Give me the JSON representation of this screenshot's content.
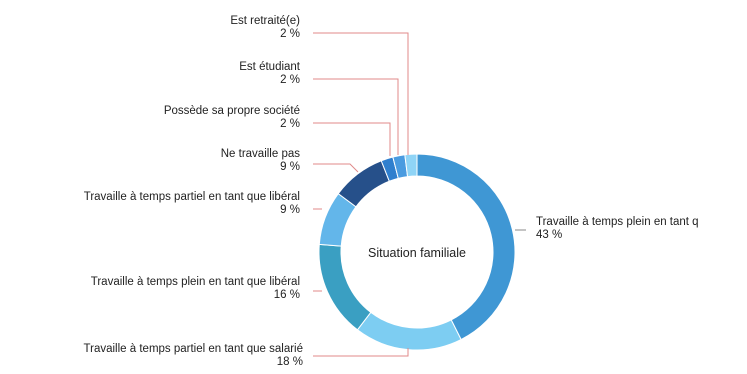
{
  "chart_data": {
    "type": "pie",
    "donut": true,
    "center_label": "Situation familiale",
    "start_angle_deg": 0,
    "direction": "clockwise",
    "slices": [
      {
        "label": "Travaille à temps plein en tant q",
        "value": 43,
        "value_label": "43 %",
        "color": "#3f97d4"
      },
      {
        "label": "Travaille à temps partiel en tant que salarié",
        "value": 18,
        "value_label": "18 %",
        "color": "#7dcdf2"
      },
      {
        "label": "Travaille à temps plein en tant que libéral",
        "value": 16,
        "value_label": "16 %",
        "color": "#3a9fc2"
      },
      {
        "label": "Travaille à temps partiel en tant que libéral",
        "value": 9,
        "value_label": "9 %",
        "color": "#63b6ea"
      },
      {
        "label": "Ne travaille pas",
        "value": 9,
        "value_label": "9 %",
        "color": "#26508a"
      },
      {
        "label": "Possède sa propre société",
        "value": 2,
        "value_label": "2 %",
        "color": "#2f7fce"
      },
      {
        "label": "Est étudiant",
        "value": 2,
        "value_label": "2 %",
        "color": "#4a9be0"
      },
      {
        "label": "Est retraité(e)",
        "value": 2,
        "value_label": "2 %",
        "color": "#8fd4f6"
      }
    ],
    "leader_color": "#e08a8a"
  }
}
